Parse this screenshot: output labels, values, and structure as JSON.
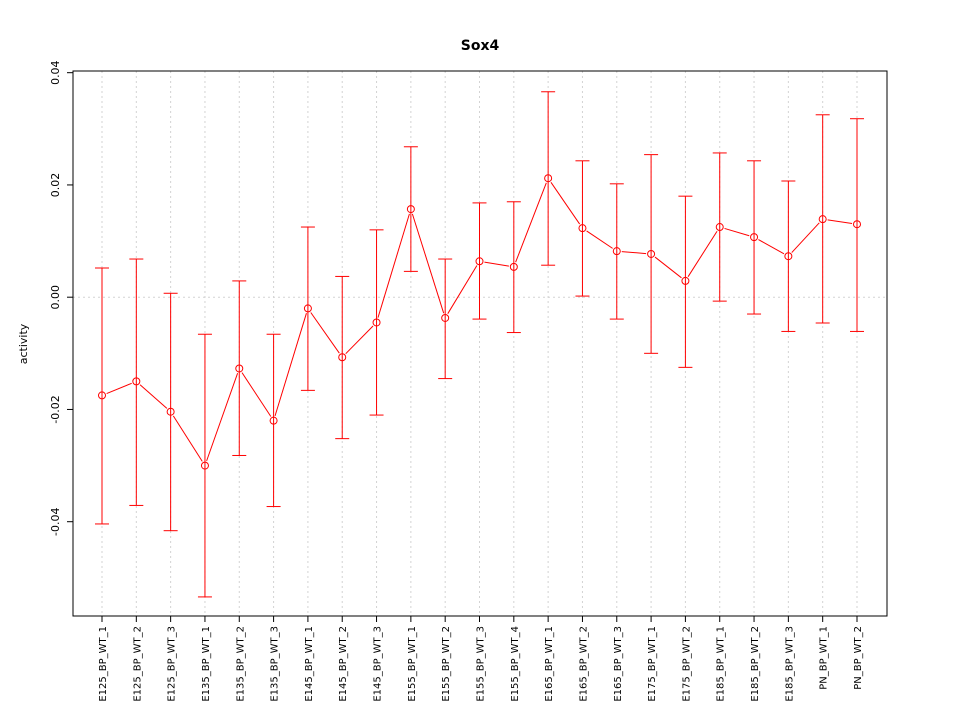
{
  "chart_data": {
    "type": "line",
    "title": "Sox4",
    "xlabel": "",
    "ylabel": "activity",
    "ylim": [
      -0.0568,
      0.0403
    ],
    "yticks": [
      -0.04,
      -0.02,
      0.0,
      0.02,
      0.04
    ],
    "ytick_labels": [
      "-0.04",
      "-0.02",
      "0.00",
      "0.02",
      "0.04"
    ],
    "grid": true,
    "categories": [
      "E125_BP_WT_1",
      "E125_BP_WT_2",
      "E125_BP_WT_3",
      "E135_BP_WT_1",
      "E135_BP_WT_2",
      "E135_BP_WT_3",
      "E145_BP_WT_1",
      "E145_BP_WT_2",
      "E145_BP_WT_3",
      "E155_BP_WT_1",
      "E155_BP_WT_2",
      "E155_BP_WT_3",
      "E155_BP_WT_4",
      "E165_BP_WT_1",
      "E165_BP_WT_2",
      "E165_BP_WT_3",
      "E175_BP_WT_1",
      "E175_BP_WT_2",
      "E185_BP_WT_1",
      "E185_BP_WT_2",
      "E185_BP_WT_3",
      "PN_BP_WT_1",
      "PN_BP_WT_2"
    ],
    "series": [
      {
        "name": "activity",
        "color": "#ff0000",
        "values": [
          -0.0175,
          -0.015,
          -0.0204,
          -0.03,
          -0.0127,
          -0.022,
          -0.002,
          -0.0107,
          -0.0045,
          0.0157,
          -0.0037,
          0.0064,
          0.0054,
          0.0212,
          0.0123,
          0.0082,
          0.0077,
          0.0029,
          0.0125,
          0.0107,
          0.0073,
          0.0139,
          0.013
        ],
        "upper": [
          0.0052,
          0.0068,
          0.0007,
          -0.0066,
          0.0029,
          -0.0066,
          0.0125,
          0.0037,
          0.012,
          0.0268,
          0.0068,
          0.0168,
          0.017,
          0.0366,
          0.0243,
          0.0202,
          0.0254,
          0.018,
          0.0257,
          0.0243,
          0.0207,
          0.0325,
          0.0318
        ],
        "lower": [
          -0.0404,
          -0.0371,
          -0.0416,
          -0.0534,
          -0.0282,
          -0.0373,
          -0.0166,
          -0.0252,
          -0.021,
          0.0046,
          -0.0145,
          -0.0039,
          -0.0063,
          0.0057,
          0.0002,
          -0.0039,
          -0.01,
          -0.0125,
          -0.0007,
          -0.003,
          -0.0061,
          -0.0046,
          -0.0061
        ]
      }
    ]
  }
}
